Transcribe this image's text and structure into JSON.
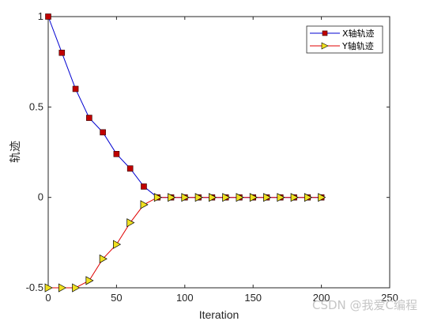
{
  "chart_data": {
    "type": "line",
    "xlabel": "Iteration",
    "ylabel": "轨迹",
    "xlim": [
      0,
      250
    ],
    "ylim": [
      -0.5,
      1
    ],
    "xticks": [
      0,
      50,
      100,
      150,
      200,
      250
    ],
    "yticks": [
      -0.5,
      0,
      0.5,
      1
    ],
    "ytick_labels": [
      "-0.5",
      "0",
      "0.5",
      "1"
    ],
    "grid": false,
    "legend_position": "top-right",
    "series": [
      {
        "name": "X轴轨迹",
        "color": "#0000d0",
        "marker": "square",
        "marker_color": "#c00000",
        "x": [
          0,
          10,
          20,
          30,
          40,
          50,
          60,
          70,
          80,
          90,
          100,
          110,
          120,
          130,
          140,
          150,
          160,
          170,
          180,
          190,
          200
        ],
        "values": [
          1,
          0.8,
          0.6,
          0.44,
          0.36,
          0.24,
          0.16,
          0.06,
          0,
          0,
          0,
          0,
          0,
          0,
          0,
          0,
          0,
          0,
          0,
          0,
          0
        ]
      },
      {
        "name": "Y轴轨迹",
        "color": "#e00000",
        "marker": "triangle-right",
        "marker_color": "#f0e020",
        "x": [
          0,
          10,
          20,
          30,
          40,
          50,
          60,
          70,
          80,
          90,
          100,
          110,
          120,
          130,
          140,
          150,
          160,
          170,
          180,
          190,
          200
        ],
        "values": [
          -0.5,
          -0.5,
          -0.5,
          -0.46,
          -0.34,
          -0.26,
          -0.14,
          -0.04,
          0,
          0,
          0,
          0,
          0,
          0,
          0,
          0,
          0,
          0,
          0,
          0,
          0
        ]
      }
    ]
  },
  "watermark": "CSDN @我爱C编程"
}
